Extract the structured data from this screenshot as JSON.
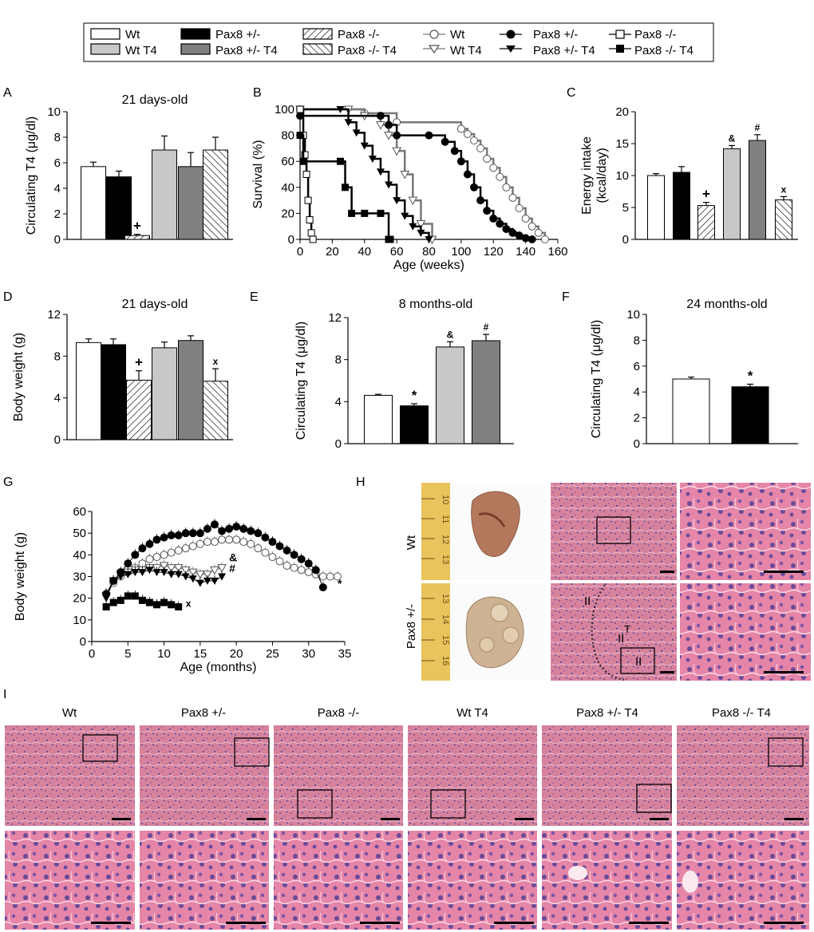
{
  "legend": {
    "bars": [
      {
        "label": "Wt",
        "fill": "#ffffff",
        "pattern": "none"
      },
      {
        "label": "Wt T4",
        "fill": "#c8c8c8",
        "pattern": "none"
      },
      {
        "label": "Pax8 +/-",
        "fill": "#000000",
        "pattern": "none"
      },
      {
        "label": "Pax8 +/- T4",
        "fill": "#808080",
        "pattern": "none"
      },
      {
        "label": "Pax8 -/-",
        "fill": "#ffffff",
        "pattern": "hatch-fwd"
      },
      {
        "label": "Pax8 -/- T4",
        "fill": "#ffffff",
        "pattern": "hatch-back"
      }
    ],
    "lines": [
      {
        "label": "Wt",
        "marker": "circle-open"
      },
      {
        "label": "Wt T4",
        "marker": "tri-open"
      },
      {
        "label": "Pax8 +/-",
        "marker": "circle-filled"
      },
      {
        "label": "Pax8 +/- T4",
        "marker": "tri-filled"
      },
      {
        "label": "Pax8 -/-",
        "marker": "square-open"
      },
      {
        "label": "Pax8 -/- T4",
        "marker": "square-filled"
      }
    ]
  },
  "groups": [
    "Wt",
    "Pax8 +/-",
    "Pax8 -/-",
    "Wt T4",
    "Pax8 +/- T4",
    "Pax8 -/- T4"
  ],
  "chart_data": [
    {
      "panel": "A",
      "type": "bar",
      "title": "21 days-old",
      "xlabel": "",
      "ylabel": "Circulating T4 (μg/dl)",
      "ylim": [
        0,
        10
      ],
      "yticks": [
        "0",
        "2",
        "4",
        "6",
        "8",
        "10"
      ],
      "categories": [
        "Wt",
        "Pax8 +/-",
        "Pax8 -/-",
        "Wt T4",
        "Pax8 +/- T4",
        "Pax8 -/- T4"
      ],
      "values": [
        5.7,
        4.9,
        0.3,
        7.0,
        5.7,
        7.0
      ],
      "errors": [
        0.35,
        0.45,
        0.1,
        1.1,
        1.1,
        1.0
      ],
      "annotations": [
        "",
        "",
        "+",
        "",
        "",
        ""
      ]
    },
    {
      "panel": "B",
      "type": "line",
      "title": "",
      "xlabel": "Age (weeks)",
      "ylabel": "Survival (%)",
      "xlim": [
        0,
        160
      ],
      "ylim": [
        0,
        100
      ],
      "xticks": [
        "0",
        "20",
        "40",
        "60",
        "80",
        "100",
        "120",
        "140",
        "160"
      ],
      "yticks": [
        "0",
        "20",
        "40",
        "60",
        "80",
        "100"
      ],
      "series": [
        {
          "name": "Wt",
          "x": [
            0,
            40,
            60,
            100,
            104,
            108,
            112,
            116,
            120,
            124,
            128,
            132,
            136,
            140,
            144,
            148,
            152
          ],
          "y": [
            100,
            97,
            90,
            85,
            81,
            76,
            70,
            62,
            55,
            48,
            40,
            32,
            24,
            16,
            10,
            5,
            0
          ]
        },
        {
          "name": "Wt T4",
          "x": [
            0,
            30,
            40,
            50,
            55,
            60,
            65,
            70,
            75,
            82
          ],
          "y": [
            100,
            100,
            95,
            88,
            80,
            68,
            50,
            30,
            12,
            0
          ]
        },
        {
          "name": "Pax8 +/-",
          "x": [
            0,
            50,
            55,
            60,
            80,
            90,
            96,
            100,
            104,
            108,
            112,
            116,
            120,
            124,
            128,
            132,
            136,
            140,
            144
          ],
          "y": [
            95,
            95,
            88,
            80,
            80,
            75,
            68,
            60,
            50,
            40,
            30,
            22,
            16,
            12,
            8,
            5,
            3,
            1,
            0
          ]
        },
        {
          "name": "Pax8 +/- T4",
          "x": [
            0,
            25,
            30,
            35,
            40,
            45,
            50,
            55,
            60,
            65,
            70,
            75,
            80
          ],
          "y": [
            100,
            100,
            90,
            82,
            72,
            62,
            52,
            42,
            30,
            18,
            10,
            5,
            0
          ]
        },
        {
          "name": "Pax8 -/-",
          "x": [
            0,
            2,
            3,
            4,
            5,
            6,
            7,
            8
          ],
          "y": [
            100,
            80,
            65,
            50,
            30,
            15,
            5,
            0
          ]
        },
        {
          "name": "Pax8 -/- T4",
          "x": [
            0,
            2,
            25,
            28,
            32,
            40,
            50,
            55,
            56
          ],
          "y": [
            80,
            60,
            60,
            40,
            20,
            20,
            20,
            0,
            0
          ]
        }
      ]
    },
    {
      "panel": "C",
      "type": "bar",
      "title": "",
      "xlabel": "",
      "ylabel": "Energy intake (kcal/day)",
      "ylim": [
        0,
        20
      ],
      "yticks": [
        "0",
        "5",
        "10",
        "15",
        "20"
      ],
      "categories": [
        "Wt",
        "Pax8 +/-",
        "Pax8 -/-",
        "Wt T4",
        "Pax8 +/- T4",
        "Pax8 -/- T4"
      ],
      "values": [
        10.0,
        10.5,
        5.3,
        14.2,
        15.5,
        6.2
      ],
      "errors": [
        0.3,
        0.9,
        0.5,
        0.5,
        0.9,
        0.5
      ],
      "annotations": [
        "",
        "",
        "+",
        "&",
        "#",
        "x"
      ]
    },
    {
      "panel": "D",
      "type": "bar",
      "title": "21 days-old",
      "xlabel": "",
      "ylabel": "Body weight (g)",
      "ylim": [
        0,
        12
      ],
      "yticks": [
        "0",
        "4",
        "8",
        "12"
      ],
      "categories": [
        "Wt",
        "Pax8 +/-",
        "Pax8 -/-",
        "Wt T4",
        "Pax8 +/- T4",
        "Pax8 -/- T4"
      ],
      "values": [
        9.3,
        9.1,
        5.7,
        8.8,
        9.5,
        5.6
      ],
      "errors": [
        0.35,
        0.55,
        0.9,
        0.55,
        0.45,
        1.2
      ],
      "annotations": [
        "",
        "",
        "+",
        "",
        "",
        "x"
      ]
    },
    {
      "panel": "E",
      "type": "bar",
      "title": "8 months-old",
      "xlabel": "",
      "ylabel": "Circulating T4 (μg/dl)",
      "ylim": [
        0,
        12
      ],
      "yticks": [
        "0",
        "4",
        "8",
        "12"
      ],
      "categories": [
        "Wt",
        "Pax8 +/-",
        "Wt T4",
        "Pax8 +/- T4"
      ],
      "values": [
        4.6,
        3.6,
        9.2,
        9.8
      ],
      "errors": [
        0.1,
        0.2,
        0.5,
        0.6
      ],
      "annotations": [
        "",
        "*",
        "&",
        "#"
      ]
    },
    {
      "panel": "F",
      "type": "bar",
      "title": "24 months-old",
      "xlabel": "",
      "ylabel": "Circulating T4 (μg/dl)",
      "ylim": [
        0,
        10
      ],
      "yticks": [
        "0",
        "2",
        "4",
        "6",
        "8",
        "10"
      ],
      "categories": [
        "Wt",
        "Pax8 +/-"
      ],
      "values": [
        5.0,
        4.4
      ],
      "errors": [
        0.15,
        0.2
      ],
      "annotations": [
        "",
        "*"
      ]
    },
    {
      "panel": "G",
      "type": "line",
      "title": "",
      "xlabel": "Age (months)",
      "ylabel": "Body weight (g)",
      "xlim": [
        0,
        35
      ],
      "ylim": [
        0,
        60
      ],
      "xticks": [
        "0",
        "5",
        "10",
        "15",
        "20",
        "25",
        "30",
        "35"
      ],
      "yticks": [
        "0",
        "10",
        "20",
        "30",
        "40",
        "50",
        "60"
      ],
      "series": [
        {
          "name": "Wt",
          "x": [
            2,
            3,
            4,
            5,
            6,
            7,
            8,
            9,
            10,
            11,
            12,
            13,
            14,
            15,
            16,
            17,
            18,
            19,
            20,
            21,
            22,
            23,
            24,
            25,
            26,
            27,
            28,
            29,
            30,
            31,
            32,
            33,
            34
          ],
          "y": [
            22,
            27,
            30,
            32,
            34,
            36,
            38,
            39,
            40,
            41,
            42,
            43,
            44,
            45,
            46,
            46,
            47,
            47,
            47,
            46,
            45,
            43,
            41,
            39,
            37,
            35,
            34,
            33,
            32,
            31,
            30,
            30,
            30
          ]
        },
        {
          "name": "Wt T4",
          "x": [
            2,
            3,
            4,
            5,
            6,
            7,
            8,
            9,
            10,
            11,
            12,
            13,
            14,
            15,
            16,
            17,
            18
          ],
          "y": [
            21,
            28,
            31,
            32,
            33,
            33,
            34,
            34,
            35,
            34,
            34,
            33,
            32,
            31,
            31,
            33,
            34
          ]
        },
        {
          "name": "Pax8 +/-",
          "x": [
            2,
            3,
            4,
            5,
            6,
            7,
            8,
            9,
            10,
            11,
            12,
            13,
            14,
            15,
            16,
            17,
            18,
            19,
            20,
            21,
            22,
            23,
            24,
            25,
            26,
            27,
            28,
            29,
            30,
            31,
            32
          ],
          "y": [
            22,
            28,
            32,
            36,
            40,
            43,
            45,
            47,
            48,
            49,
            49,
            50,
            50,
            50,
            52,
            54,
            51,
            52,
            53,
            52,
            51,
            50,
            48,
            46,
            44,
            42,
            40,
            38,
            36,
            33,
            25
          ]
        },
        {
          "name": "Pax8 +/- T4",
          "x": [
            2,
            3,
            4,
            5,
            6,
            7,
            8,
            9,
            10,
            11,
            12,
            13,
            14,
            15,
            16,
            17,
            18
          ],
          "y": [
            20,
            28,
            30,
            31,
            32,
            32,
            33,
            32,
            32,
            31,
            31,
            30,
            29,
            27,
            28,
            28,
            30
          ]
        },
        {
          "name": "Pax8 -/- T4",
          "x": [
            2,
            3,
            4,
            5,
            6,
            7,
            8,
            9,
            10,
            11,
            12
          ],
          "y": [
            16,
            18,
            19,
            21,
            21,
            19,
            18,
            17,
            18,
            17,
            16
          ]
        }
      ],
      "annotations": [
        {
          "text": "&",
          "x": 19,
          "y": 37
        },
        {
          "text": "#",
          "x": 19,
          "y": 32
        },
        {
          "text": "x",
          "x": 13,
          "y": 16
        },
        {
          "text": "*",
          "x": 34,
          "y": 25
        }
      ]
    }
  ],
  "panel_labels": [
    "A",
    "B",
    "C",
    "D",
    "E",
    "F",
    "G",
    "H",
    "I"
  ],
  "panel_h": {
    "row_labels": [
      "Wt",
      "Pax8 +/-"
    ],
    "ruler_ticks_wt": [
      "10",
      "11",
      "12",
      "13"
    ],
    "ruler_ticks_het": [
      "13",
      "14",
      "15",
      "16"
    ],
    "lesion_labels": [
      "II",
      "T",
      "II",
      "II"
    ]
  },
  "panel_i": {
    "columns": [
      "Wt",
      "Pax8 +/-",
      "Pax8 -/-",
      "Wt T4",
      "Pax8 +/- T4",
      "Pax8 -/- T4"
    ]
  }
}
